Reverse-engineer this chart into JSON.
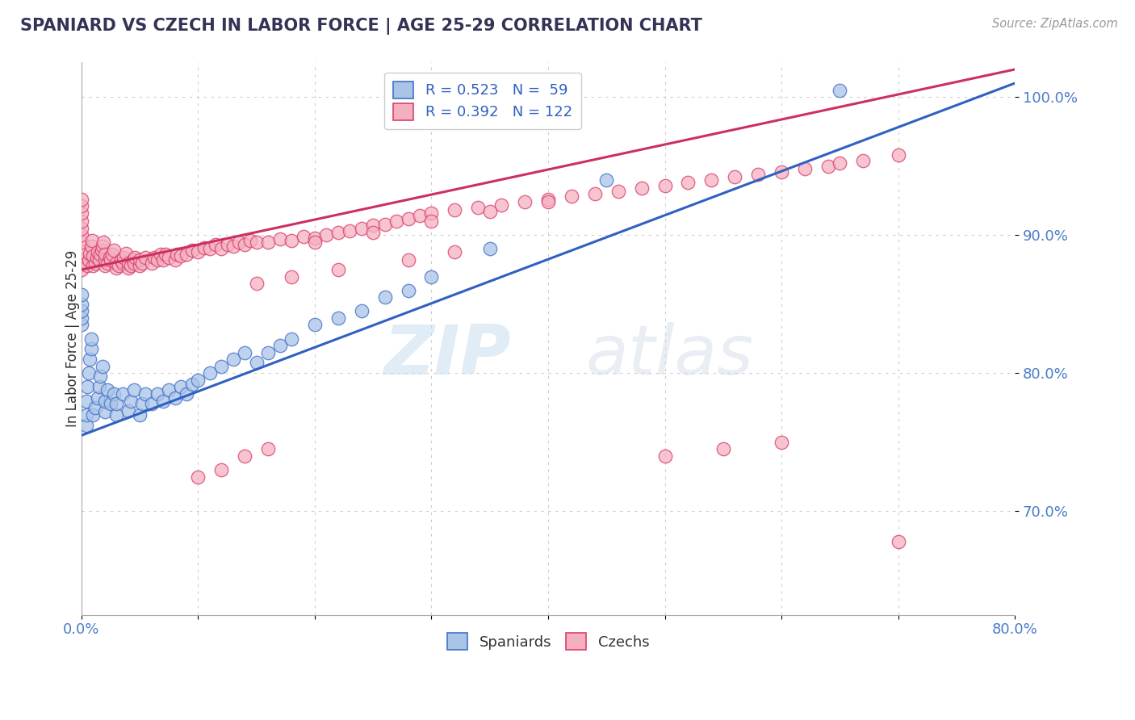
{
  "title": "SPANIARD VS CZECH IN LABOR FORCE | AGE 25-29 CORRELATION CHART",
  "source": "Source: ZipAtlas.com",
  "ylabel": "In Labor Force | Age 25-29",
  "xlim": [
    0.0,
    0.8
  ],
  "ylim": [
    0.625,
    1.025
  ],
  "ytick_positions": [
    0.7,
    0.8,
    0.9,
    1.0
  ],
  "yticklabels": [
    "70.0%",
    "80.0%",
    "90.0%",
    "100.0%"
  ],
  "spaniard_color": "#aac4e8",
  "czech_color": "#f5b0bf",
  "spaniard_edge_color": "#4070c8",
  "czech_edge_color": "#d84070",
  "spaniard_line_color": "#3060c0",
  "czech_line_color": "#cc3060",
  "legend_spaniard_label": "R = 0.523   N =  59",
  "legend_czech_label": "R = 0.392   N = 122",
  "watermark_zip": "ZIP",
  "watermark_atlas": "atlas",
  "spaniard_N": 59,
  "czech_N": 122,
  "spaniard_R": 0.523,
  "czech_R": 0.392,
  "sp_line_x0": 0.0,
  "sp_line_y0": 0.755,
  "sp_line_x1": 0.8,
  "sp_line_y1": 1.01,
  "cz_line_x0": 0.0,
  "cz_line_y0": 0.875,
  "cz_line_x1": 0.8,
  "cz_line_y1": 1.02,
  "spaniard_x": [
    0.0,
    0.0,
    0.0,
    0.0,
    0.0,
    0.004,
    0.004,
    0.004,
    0.005,
    0.006,
    0.007,
    0.008,
    0.008,
    0.01,
    0.012,
    0.014,
    0.015,
    0.016,
    0.018,
    0.02,
    0.02,
    0.022,
    0.025,
    0.028,
    0.03,
    0.03,
    0.035,
    0.04,
    0.042,
    0.045,
    0.05,
    0.052,
    0.055,
    0.06,
    0.065,
    0.07,
    0.075,
    0.08,
    0.085,
    0.09,
    0.095,
    0.1,
    0.11,
    0.12,
    0.13,
    0.14,
    0.15,
    0.16,
    0.17,
    0.18,
    0.2,
    0.22,
    0.24,
    0.26,
    0.28,
    0.3,
    0.35,
    0.45,
    0.65
  ],
  "spaniard_y": [
    0.835,
    0.84,
    0.845,
    0.85,
    0.857,
    0.762,
    0.77,
    0.78,
    0.79,
    0.8,
    0.81,
    0.818,
    0.825,
    0.77,
    0.775,
    0.782,
    0.79,
    0.798,
    0.805,
    0.772,
    0.78,
    0.788,
    0.778,
    0.785,
    0.77,
    0.778,
    0.785,
    0.773,
    0.78,
    0.788,
    0.77,
    0.778,
    0.785,
    0.778,
    0.785,
    0.78,
    0.788,
    0.782,
    0.79,
    0.785,
    0.792,
    0.795,
    0.8,
    0.805,
    0.81,
    0.815,
    0.808,
    0.815,
    0.82,
    0.825,
    0.835,
    0.84,
    0.845,
    0.855,
    0.86,
    0.87,
    0.89,
    0.94,
    1.005
  ],
  "czech_x": [
    0.0,
    0.0,
    0.0,
    0.0,
    0.0,
    0.0,
    0.0,
    0.0,
    0.0,
    0.0,
    0.005,
    0.006,
    0.007,
    0.008,
    0.009,
    0.01,
    0.01,
    0.012,
    0.013,
    0.014,
    0.015,
    0.016,
    0.017,
    0.018,
    0.019,
    0.02,
    0.02,
    0.02,
    0.022,
    0.024,
    0.025,
    0.026,
    0.028,
    0.03,
    0.03,
    0.032,
    0.034,
    0.035,
    0.036,
    0.038,
    0.04,
    0.04,
    0.042,
    0.044,
    0.045,
    0.046,
    0.05,
    0.05,
    0.052,
    0.055,
    0.06,
    0.062,
    0.065,
    0.068,
    0.07,
    0.072,
    0.075,
    0.08,
    0.082,
    0.085,
    0.09,
    0.095,
    0.1,
    0.105,
    0.11,
    0.115,
    0.12,
    0.125,
    0.13,
    0.135,
    0.14,
    0.145,
    0.15,
    0.16,
    0.17,
    0.18,
    0.19,
    0.2,
    0.21,
    0.22,
    0.23,
    0.24,
    0.25,
    0.26,
    0.27,
    0.28,
    0.29,
    0.3,
    0.32,
    0.34,
    0.36,
    0.38,
    0.4,
    0.42,
    0.44,
    0.46,
    0.48,
    0.5,
    0.52,
    0.54,
    0.56,
    0.58,
    0.6,
    0.62,
    0.64,
    0.65,
    0.67,
    0.7,
    0.2,
    0.25,
    0.3,
    0.35,
    0.4,
    0.15,
    0.18,
    0.22,
    0.28,
    0.32,
    0.1,
    0.12,
    0.14,
    0.16,
    0.5,
    0.55,
    0.6,
    0.7
  ],
  "czech_y": [
    0.875,
    0.882,
    0.888,
    0.895,
    0.9,
    0.905,
    0.91,
    0.916,
    0.921,
    0.926,
    0.878,
    0.882,
    0.887,
    0.892,
    0.896,
    0.878,
    0.885,
    0.88,
    0.884,
    0.888,
    0.882,
    0.886,
    0.889,
    0.892,
    0.895,
    0.878,
    0.882,
    0.886,
    0.88,
    0.884,
    0.882,
    0.886,
    0.889,
    0.876,
    0.88,
    0.878,
    0.882,
    0.88,
    0.884,
    0.887,
    0.876,
    0.88,
    0.878,
    0.882,
    0.88,
    0.884,
    0.878,
    0.882,
    0.88,
    0.884,
    0.88,
    0.884,
    0.882,
    0.886,
    0.882,
    0.886,
    0.884,
    0.882,
    0.886,
    0.885,
    0.886,
    0.889,
    0.888,
    0.891,
    0.89,
    0.893,
    0.89,
    0.893,
    0.892,
    0.895,
    0.893,
    0.896,
    0.895,
    0.895,
    0.897,
    0.896,
    0.899,
    0.898,
    0.9,
    0.902,
    0.903,
    0.905,
    0.907,
    0.908,
    0.91,
    0.912,
    0.914,
    0.916,
    0.918,
    0.92,
    0.922,
    0.924,
    0.926,
    0.928,
    0.93,
    0.932,
    0.934,
    0.936,
    0.938,
    0.94,
    0.942,
    0.944,
    0.946,
    0.948,
    0.95,
    0.952,
    0.954,
    0.958,
    0.895,
    0.902,
    0.91,
    0.917,
    0.924,
    0.865,
    0.87,
    0.875,
    0.882,
    0.888,
    0.725,
    0.73,
    0.74,
    0.745,
    0.74,
    0.745,
    0.75,
    0.678
  ]
}
